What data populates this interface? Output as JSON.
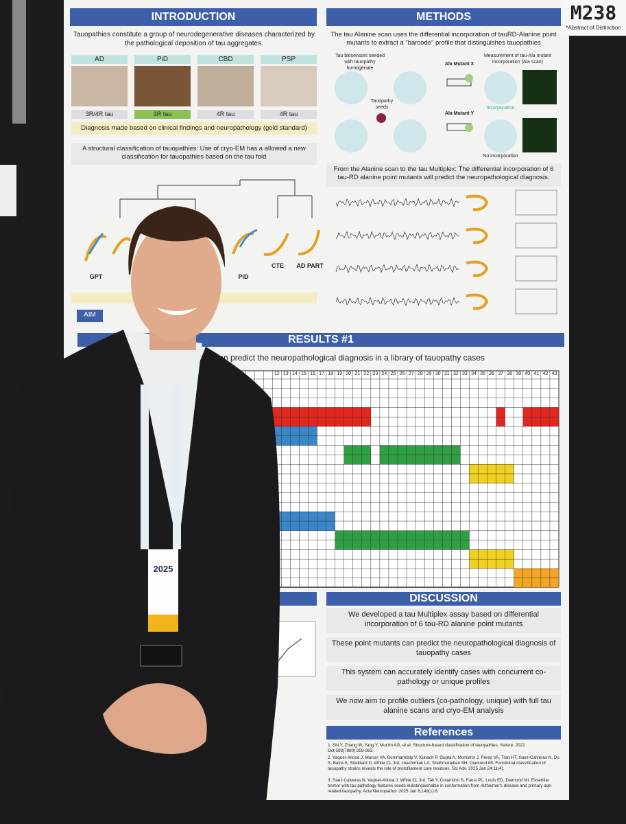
{
  "badge": {
    "code": "M238",
    "note": "*Abstract of Distinction"
  },
  "introduction": {
    "title": "INTRODUCTION",
    "text": "Tauopathies constitute a group of neurodegenerative diseases characterized by the pathological deposition of tau aggregates.",
    "panels": [
      {
        "name": "AD",
        "tau": "3R/4R tau"
      },
      {
        "name": "PiD",
        "tau": "3R tau"
      },
      {
        "name": "CBD",
        "tau": "4R tau"
      },
      {
        "name": "PSP",
        "tau": "4R tau"
      }
    ],
    "diagnosis": "Diagnosis made based on clinical findings and neuropathology (gold standard)",
    "classification": "A structural classification of tauopathies: Use of cryo-EM has a allowed a new classification for tauopathies based on the tau fold",
    "leaves": [
      "GPT",
      "PiD",
      "CTE",
      "AD PART"
    ],
    "aim": "AIM"
  },
  "methods": {
    "title": "METHODS",
    "text": "The tau Alanine scan uses the differential incorporation of tauRD-Alanine point mutants to extract a \"barcode\" profile that distinguishes tauopathies",
    "labels": [
      "Tau biosensors seeded with tauopathy homogenate",
      "Measurement of tau-Ala mutant incorporation (Ala scan)",
      "Ala Mutant X",
      "Ala Mutant Y",
      "Tauopathy seeds",
      "Incorporation",
      "No incorporation"
    ],
    "multiplex": "From the Alanine scan to the tau Multiplex: The differential incorporation of 6 tau-RD alanine point mutants will predict the neuropathological diagnosis."
  },
  "results": {
    "title": "RESULTS #1",
    "text": "tem can predict the neuropathological diagnosis in a library of tauopathy cases",
    "columns": [
      "12",
      "13",
      "14",
      "15",
      "16",
      "17",
      "18",
      "19",
      "20",
      "21",
      "22",
      "23",
      "24",
      "25",
      "26",
      "27",
      "28",
      "29",
      "30",
      "31",
      "32",
      "33",
      "34",
      "35",
      "36",
      "37",
      "38",
      "39",
      "40",
      "41",
      "42",
      "43"
    ]
  },
  "discussion": {
    "title": "DISCUSSION",
    "items": [
      "We developed a tau Multiplex assay based on differential incorporation of 6 tau-RD alanine point mutants",
      "These point mutants can predict the neuropathological diagnosis of tauopathy cases",
      "This system can accurately identify cases with concurrent co-pathology or unique profiles",
      "We now aim to profile outliers (co-pathology, unique) with full tau alanine scans and cryo-EM analysis"
    ]
  },
  "references": {
    "title": "References",
    "items": [
      "1. Shi Y, Zhang W, Yang Y, Murzin AG, et al. Structure-based classification of tauopathies. Nature. 2021 Oct;598(7880):359-363.",
      "2. Vaquer-Alicea J, Manon VA, Bommareddy V, Kunach P, Gupta A, Monistrol J, Perez VA, Tran HT, Saez-Calveras N, Du S, Batra S, Stoddard D, White CL 3rd, Joachimiak LA, Shahmoradian SH, Diamond MI. Functional classification of tauopathy strains reveals the role of protofilament core residues. Sci Adv. 2025 Jan 24;11(4).",
      "3. Saez-Calveras N, Vaquer-Alicea J, White CL 3rd, Tak Y, Cosentino S, Faust PL, Louis ED, Diamond MI. Essential tremor with tau pathology features seeds indistinguishable in conformation from Alzheimer's disease and primary age-related tauopathy. Acta Neuropathol. 2025 Jan 8;149(1):6."
    ]
  },
  "name_badge": {
    "year": "2025"
  }
}
